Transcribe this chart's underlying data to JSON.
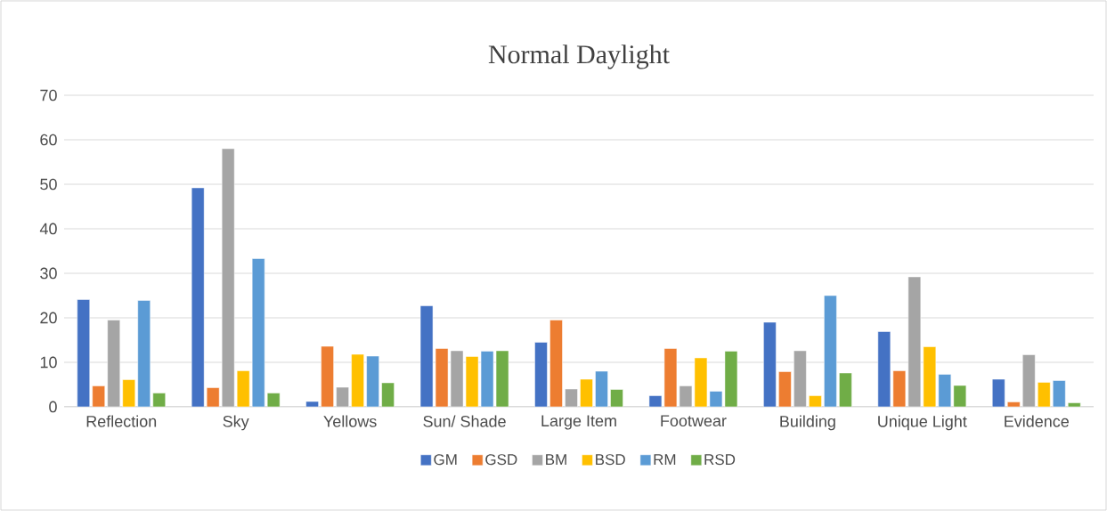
{
  "chart_data": {
    "type": "bar",
    "title": "Normal Daylight",
    "categories": [
      "Reflection",
      "Sky",
      "Yellows",
      "Sun/ Shade",
      "Large Item",
      "Footwear",
      "Building",
      "Unique Light",
      "Evidence"
    ],
    "series": [
      {
        "name": "GM",
        "color": "#4472c4",
        "values": [
          24.1,
          49.2,
          1.2,
          22.7,
          14.5,
          2.5,
          19.0,
          16.9,
          6.2
        ]
      },
      {
        "name": "GSD",
        "color": "#ed7d31",
        "values": [
          4.7,
          4.3,
          13.6,
          13.1,
          19.5,
          13.1,
          7.9,
          8.1,
          1.1
        ]
      },
      {
        "name": "BM",
        "color": "#a5a5a5",
        "values": [
          19.5,
          58.0,
          4.4,
          12.6,
          4.0,
          4.7,
          12.6,
          29.2,
          11.7
        ]
      },
      {
        "name": "BSD",
        "color": "#ffc000",
        "values": [
          6.1,
          8.1,
          11.8,
          11.3,
          6.2,
          11.0,
          2.5,
          13.5,
          5.5
        ]
      },
      {
        "name": "RM",
        "color": "#5b9bd5",
        "values": [
          23.9,
          33.3,
          11.4,
          12.5,
          8.0,
          3.5,
          25.0,
          7.3,
          5.9
        ]
      },
      {
        "name": "RSD",
        "color": "#70ad47",
        "values": [
          3.1,
          3.1,
          5.4,
          12.6,
          3.9,
          12.5,
          7.6,
          4.8,
          0.9
        ]
      }
    ],
    "ylim": [
      0,
      70
    ],
    "yticks": [
      0,
      10,
      20,
      30,
      40,
      50,
      60,
      70
    ],
    "grid": "y",
    "legend": "bottom"
  }
}
